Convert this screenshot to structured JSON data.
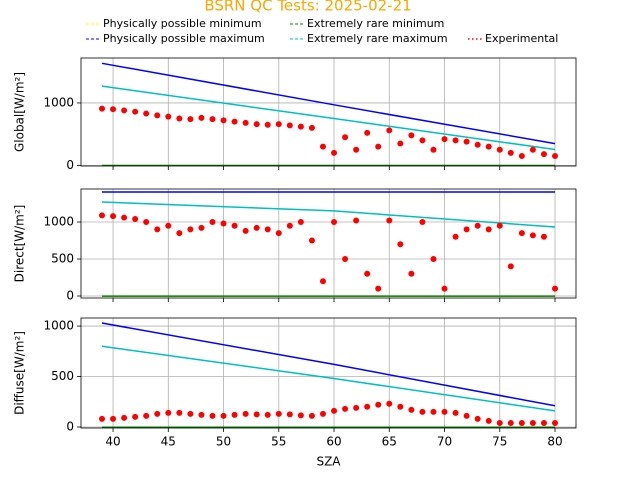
{
  "chart_data": [
    {
      "type": "line",
      "title": "BSRN QC Tests: 2025-02-21",
      "ylabel": "Global[W/m²]",
      "xlim": [
        37.1,
        81.9
      ],
      "xticks": [
        40,
        45,
        50,
        55,
        60,
        65,
        70,
        75,
        80
      ],
      "ylim": [
        -10,
        1720
      ],
      "yticks": [
        0,
        1000
      ],
      "grid": true,
      "legend": "upper center",
      "series": [
        {
          "name": "Physically possible minimum",
          "color": "#ffff00",
          "mark": "line",
          "x": [
            39,
            80
          ],
          "values": [
            -4,
            -4
          ]
        },
        {
          "name": "Physically possible maximum",
          "color": "#0000ff",
          "mark": "line",
          "x": [
            39,
            60,
            80
          ],
          "values": [
            1635,
            970,
            349
          ]
        },
        {
          "name": "Extremely rare minimum",
          "color": "#008000",
          "mark": "line",
          "x": [
            39,
            80
          ],
          "values": [
            -2,
            -2
          ]
        },
        {
          "name": "Extremely rare maximum",
          "color": "#00bfbf",
          "mark": "line",
          "x": [
            39,
            60,
            80
          ],
          "values": [
            1270,
            750,
            254
          ]
        },
        {
          "name": "Experimental",
          "color": "#ff0000",
          "mark": "dots",
          "x": [
            39,
            40,
            41,
            42,
            43,
            44,
            45,
            46,
            47,
            48,
            49,
            50,
            51,
            52,
            53,
            54,
            55,
            56,
            57,
            58,
            59,
            60,
            61,
            62,
            63,
            64,
            65,
            66,
            67,
            68,
            69,
            70,
            71,
            72,
            73,
            74,
            75,
            76,
            77,
            78,
            79,
            80
          ],
          "values": [
            910,
            900,
            880,
            860,
            830,
            800,
            780,
            750,
            740,
            760,
            740,
            720,
            700,
            680,
            660,
            650,
            660,
            640,
            620,
            600,
            300,
            200,
            450,
            250,
            520,
            300,
            560,
            350,
            480,
            400,
            250,
            420,
            400,
            380,
            330,
            300,
            250,
            200,
            150,
            250,
            180,
            150
          ]
        }
      ]
    },
    {
      "type": "line",
      "ylabel": "Direct[W/m²]",
      "xlim": [
        37.1,
        81.9
      ],
      "xticks": [
        40,
        45,
        50,
        55,
        60,
        65,
        70,
        75,
        80
      ],
      "ylim": [
        -27,
        1446
      ],
      "yticks": [
        0,
        500,
        1000
      ],
      "grid": true,
      "series": [
        {
          "color": "#ffff00",
          "mark": "line",
          "x": [
            39,
            80
          ],
          "values": [
            -4,
            -4
          ]
        },
        {
          "color": "#0000ff",
          "mark": "line",
          "x": [
            39,
            80
          ],
          "values": [
            1405,
            1405
          ]
        },
        {
          "color": "#008000",
          "mark": "line",
          "x": [
            39,
            80
          ],
          "values": [
            -2,
            -2
          ]
        },
        {
          "color": "#00bfbf",
          "mark": "line",
          "x": [
            39,
            60,
            80
          ],
          "values": [
            1270,
            1150,
            932
          ]
        },
        {
          "color": "#ff0000",
          "mark": "dots",
          "x": [
            39,
            40,
            41,
            42,
            43,
            44,
            45,
            46,
            47,
            48,
            49,
            50,
            51,
            52,
            53,
            54,
            55,
            56,
            57,
            58,
            59,
            60,
            61,
            62,
            63,
            64,
            65,
            66,
            67,
            68,
            69,
            70,
            71,
            72,
            73,
            74,
            75,
            76,
            77,
            78,
            79,
            80
          ],
          "values": [
            1090,
            1080,
            1060,
            1040,
            1000,
            900,
            950,
            850,
            900,
            920,
            1000,
            980,
            950,
            880,
            920,
            900,
            850,
            950,
            1000,
            750,
            200,
            1000,
            500,
            1020,
            300,
            100,
            1020,
            700,
            300,
            1000,
            500,
            100,
            800,
            900,
            950,
            900,
            950,
            400,
            850,
            820,
            800,
            100
          ]
        }
      ]
    },
    {
      "type": "line",
      "ylabel": "Diffuse[W/m²]",
      "xlabel": "SZA",
      "xlim": [
        37.1,
        81.9
      ],
      "xticks": [
        40,
        45,
        50,
        55,
        60,
        65,
        70,
        75,
        80
      ],
      "ylim": [
        -10,
        1080
      ],
      "yticks": [
        0,
        500,
        1000
      ],
      "grid": true,
      "series": [
        {
          "color": "#ffff00",
          "mark": "line",
          "x": [
            39,
            80
          ],
          "values": [
            -4,
            -4
          ]
        },
        {
          "color": "#0000ff",
          "mark": "line",
          "x": [
            39,
            60,
            80
          ],
          "values": [
            1030,
            620,
            210
          ]
        },
        {
          "color": "#008000",
          "mark": "line",
          "x": [
            39,
            80
          ],
          "values": [
            -2,
            -2
          ]
        },
        {
          "color": "#00bfbf",
          "mark": "line",
          "x": [
            39,
            60,
            80
          ],
          "values": [
            800,
            480,
            160
          ]
        },
        {
          "color": "#ff0000",
          "mark": "dots",
          "x": [
            39,
            40,
            41,
            42,
            43,
            44,
            45,
            46,
            47,
            48,
            49,
            50,
            51,
            52,
            53,
            54,
            55,
            56,
            57,
            58,
            59,
            60,
            61,
            62,
            63,
            64,
            65,
            66,
            67,
            68,
            69,
            70,
            71,
            72,
            73,
            74,
            75,
            76,
            77,
            78,
            79,
            80
          ],
          "values": [
            80,
            80,
            90,
            100,
            110,
            130,
            140,
            140,
            130,
            120,
            110,
            110,
            120,
            130,
            125,
            120,
            130,
            125,
            115,
            110,
            130,
            160,
            180,
            190,
            200,
            220,
            230,
            200,
            170,
            150,
            150,
            150,
            140,
            110,
            80,
            60,
            40,
            40,
            40,
            40,
            40,
            40
          ]
        }
      ]
    }
  ]
}
